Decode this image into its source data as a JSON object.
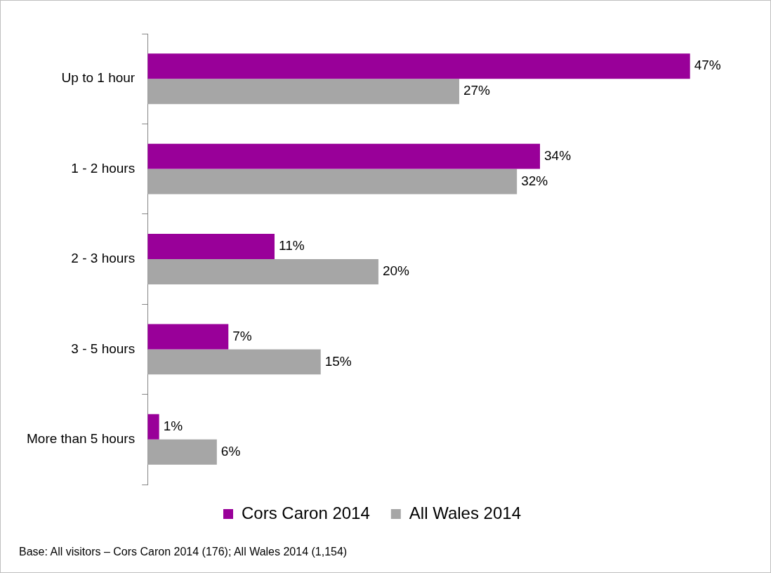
{
  "chart_data": {
    "type": "bar",
    "orientation": "horizontal",
    "categories": [
      "Up to 1 hour",
      "1 - 2 hours",
      "2 - 3 hours",
      "3 - 5 hours",
      "More than 5 hours"
    ],
    "series": [
      {
        "name": "Cors Caron 2014",
        "color": "#990099",
        "values": [
          47,
          34,
          11,
          7,
          1
        ],
        "value_labels": [
          "47%",
          "34%",
          "11%",
          "7%",
          "1%"
        ]
      },
      {
        "name": "All Wales 2014",
        "color": "#a6a6a6",
        "values": [
          27,
          32,
          20,
          15,
          6
        ],
        "value_labels": [
          "27%",
          "32%",
          "20%",
          "15%",
          "6%"
        ]
      }
    ],
    "legend": "bottom",
    "grid": false,
    "annotations": [
      "Base: All visitors – Cors Caron 2014 (176); All Wales 2014 (1,154)"
    ]
  }
}
